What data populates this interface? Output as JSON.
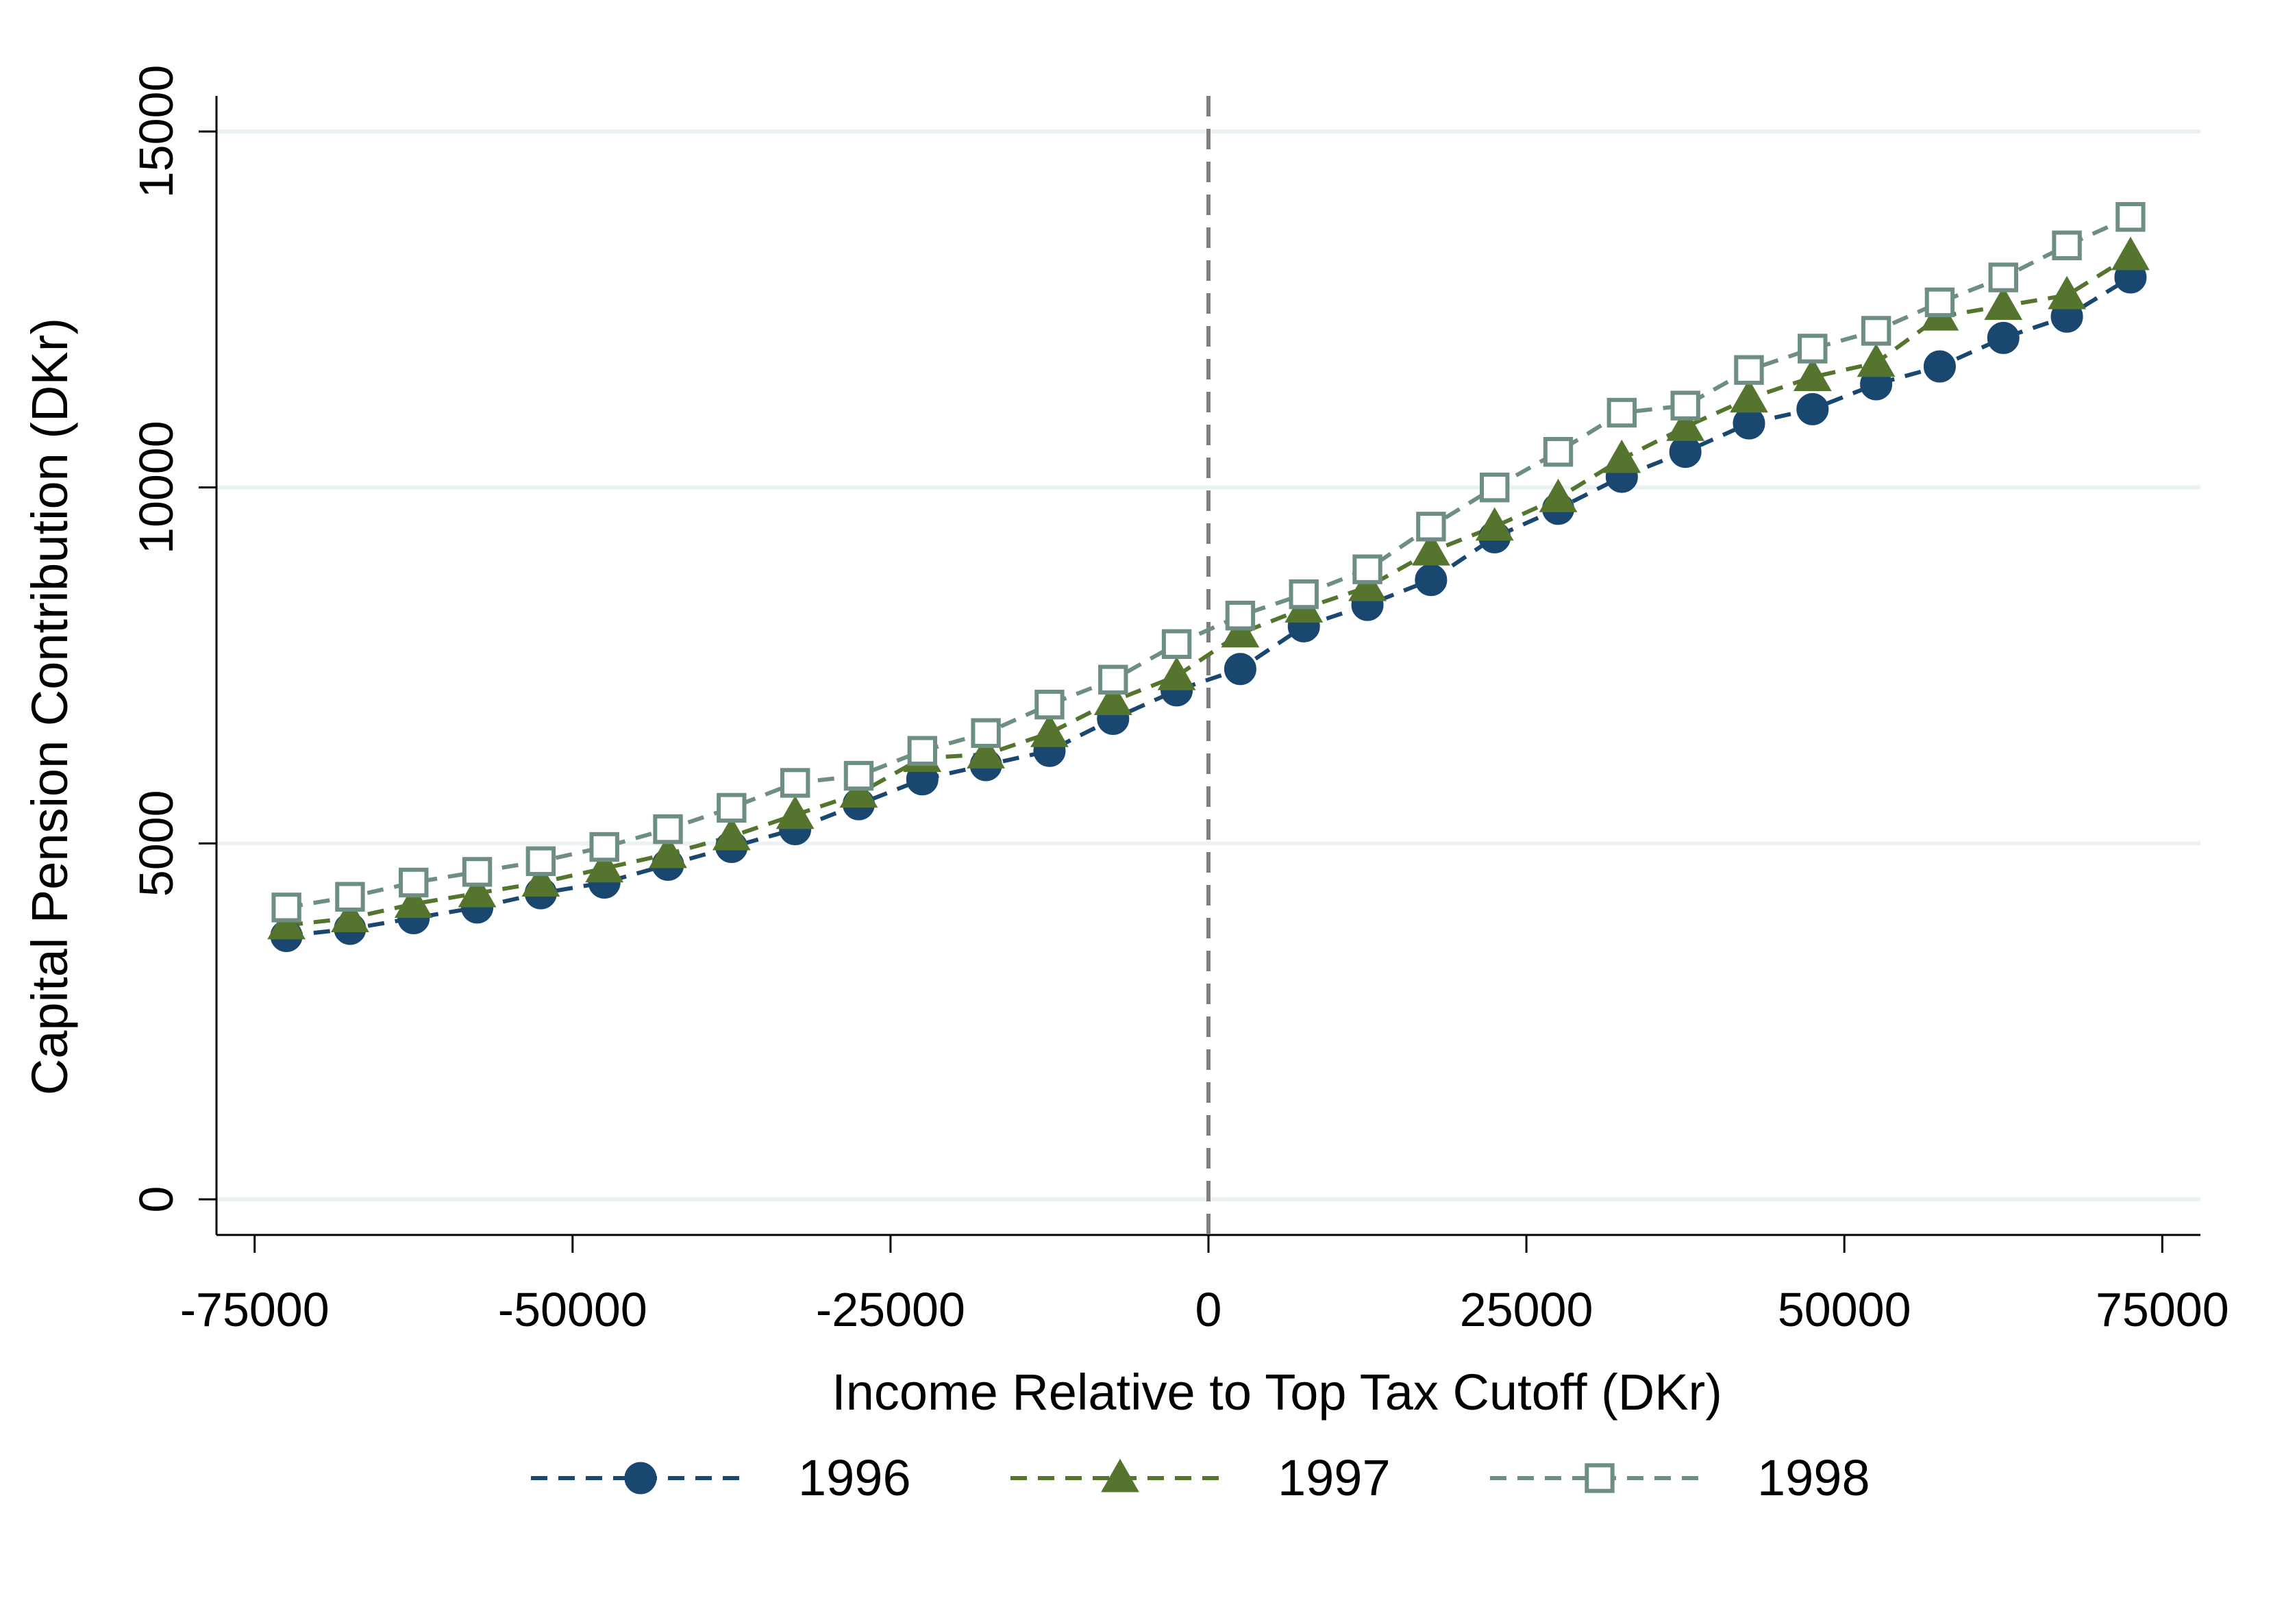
{
  "chart_data": {
    "type": "line",
    "title": "",
    "xlabel": "Income Relative to Top Tax Cutoff (DKr)",
    "ylabel": "Capital Pension Contribution (DKr)",
    "xlim": [
      -78000,
      78000
    ],
    "ylim": [
      -500,
      15500
    ],
    "xticks": [
      -75000,
      -50000,
      -25000,
      0,
      25000,
      50000,
      75000
    ],
    "xtick_labels": [
      "-75000",
      "-50000",
      "-25000",
      "0",
      "25000",
      "50000",
      "75000"
    ],
    "yticks": [
      0,
      5000,
      10000,
      15000
    ],
    "ytick_labels": [
      "0",
      "5000",
      "10000",
      "15000"
    ],
    "grid": "horizontal",
    "legend_position": "bottom",
    "reference_line": {
      "x": 0,
      "style": "dashed",
      "color": "#808080"
    },
    "x": [
      -72500,
      -67500,
      -62500,
      -57500,
      -52500,
      -47500,
      -42500,
      -37500,
      -32500,
      -27500,
      -22500,
      -17500,
      -12500,
      -7500,
      -2500,
      2500,
      7500,
      12500,
      17500,
      22500,
      27500,
      32500,
      37500,
      42500,
      47500,
      52500,
      57500,
      62500,
      67500,
      72500
    ],
    "series": [
      {
        "name": "1996",
        "color": "#1a476f",
        "marker": "circle-filled",
        "values": [
          3700,
          3800,
          3950,
          4100,
          4300,
          4450,
          4700,
          4950,
          5200,
          5550,
          5900,
          6100,
          6300,
          6750,
          7150,
          7450,
          8050,
          8350,
          8700,
          9300,
          9700,
          10150,
          10500,
          10900,
          11100,
          11450,
          11700,
          12100,
          12400,
          12950
        ]
      },
      {
        "name": "1997",
        "color": "#55752f",
        "marker": "triangle-filled",
        "values": [
          3850,
          3950,
          4150,
          4300,
          4450,
          4650,
          4850,
          5100,
          5400,
          5700,
          6200,
          6250,
          6550,
          7000,
          7350,
          7950,
          8300,
          8600,
          9100,
          9450,
          9850,
          10400,
          10850,
          11250,
          11550,
          11750,
          12400,
          12550,
          12700,
          13250
        ]
      },
      {
        "name": "1998",
        "color": "#6e8e84",
        "marker": "square-hollow",
        "values": [
          4100,
          4250,
          4450,
          4600,
          4750,
          4950,
          5200,
          5500,
          5850,
          5950,
          6300,
          6550,
          6950,
          7300,
          7800,
          8200,
          8500,
          8850,
          9450,
          10000,
          10500,
          11050,
          11150,
          11650,
          11950,
          12200,
          12600,
          12950,
          13400,
          13800
        ]
      }
    ]
  }
}
